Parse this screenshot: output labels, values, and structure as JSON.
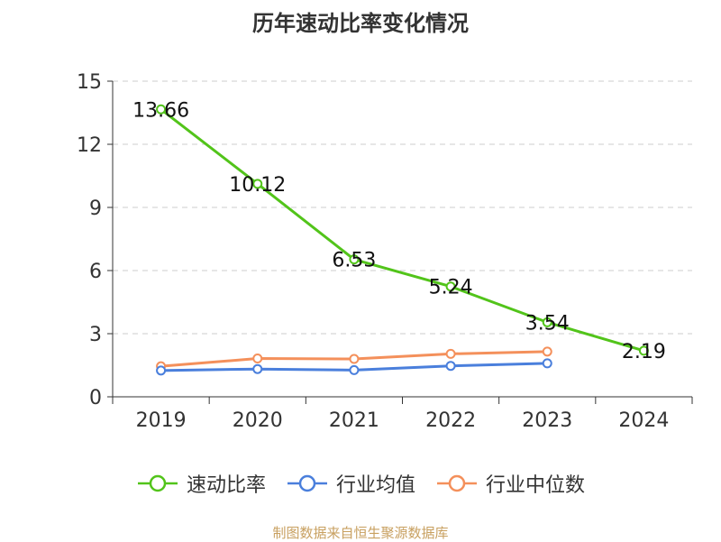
{
  "chart_data": {
    "type": "line",
    "title": "历年速动比率变化情况",
    "categories": [
      "2019",
      "2020",
      "2021",
      "2022",
      "2023",
      "2024"
    ],
    "ylim": [
      0,
      15
    ],
    "yticks": [
      "0",
      "3",
      "6",
      "9",
      "12",
      "15"
    ],
    "grid": true,
    "legend_position": "bottom",
    "series": [
      {
        "name": "速动比率",
        "color": "#52c41a",
        "values": [
          13.66,
          10.12,
          6.53,
          5.24,
          3.54,
          2.19
        ],
        "labels": [
          "13.66",
          "10.12",
          "6.53",
          "5.24",
          "3.54",
          "2.19"
        ]
      },
      {
        "name": "行业均值",
        "color": "#4a7fdc",
        "values": [
          1.25,
          1.32,
          1.27,
          1.47,
          1.59,
          null
        ]
      },
      {
        "name": "行业中位数",
        "color": "#f4905b",
        "values": [
          1.45,
          1.82,
          1.8,
          2.04,
          2.15,
          null
        ]
      }
    ]
  },
  "source": "制图数据来自恒生聚源数据库"
}
